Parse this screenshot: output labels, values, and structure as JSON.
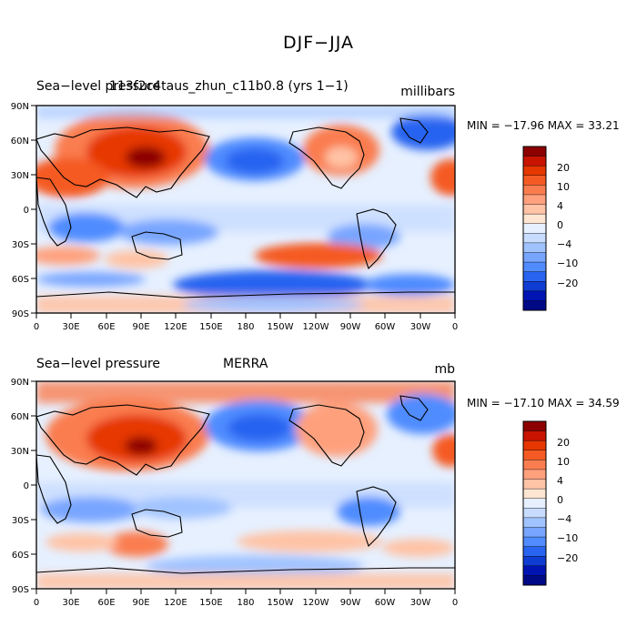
{
  "title": "DJF−JJA",
  "panels": [
    {
      "variable": "Sea−level pressure",
      "case": "113f2c4taus_zhun_c11b0.8 (yrs 1−1)",
      "units": "millibars",
      "minmax": "MIN = −17.96  MAX =  33.21"
    },
    {
      "variable": "Sea−level pressure",
      "case": "MERRA",
      "units": "mb",
      "minmax": "MIN = −17.10  MAX =  34.59"
    }
  ],
  "lat_ticks": [
    "90N",
    "60N",
    "30N",
    "0",
    "30S",
    "60S",
    "90S"
  ],
  "lon_ticks": [
    "0",
    "30E",
    "60E",
    "90E",
    "120E",
    "150E",
    "180",
    "150W",
    "120W",
    "90W",
    "60W",
    "30W",
    "0"
  ],
  "colorbar": {
    "labels": [
      "20",
      "10",
      "4",
      "0",
      "−4",
      "−10",
      "−20"
    ],
    "colors": [
      "#8c0000",
      "#c81400",
      "#e63700",
      "#f55a24",
      "#fa7d50",
      "#ffa07d",
      "#ffc3a5",
      "#ffe6d2",
      "#e6f0ff",
      "#c8dcff",
      "#a0c3ff",
      "#78a5ff",
      "#508cff",
      "#2864f0",
      "#0f3cd2",
      "#0014b4",
      "#000a87"
    ]
  },
  "colors": {
    "land_outline": "#000000",
    "frame": "#000000"
  }
}
